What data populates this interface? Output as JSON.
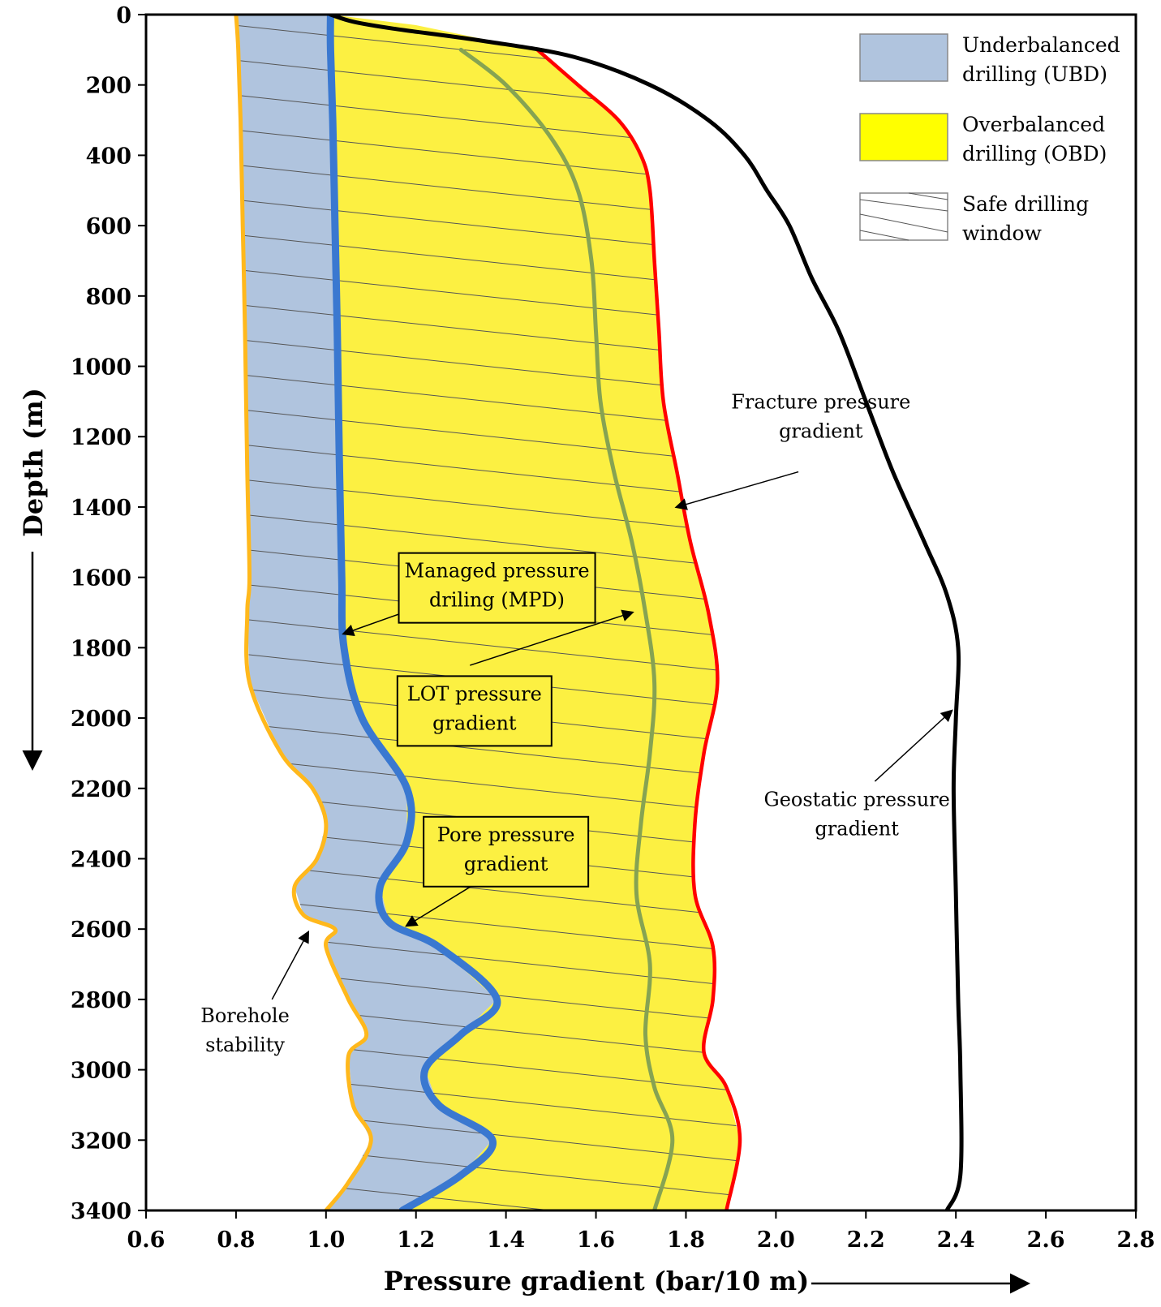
{
  "chart_data": {
    "type": "line",
    "title": "",
    "xlabel": "Pressure gradient (bar/10 m)",
    "ylabel": "Depth (m)",
    "xlim": [
      0.6,
      2.8
    ],
    "ylim": [
      3400,
      0
    ],
    "x_ticks": [
      "0.6",
      "0.8",
      "1.0",
      "1.2",
      "1.4",
      "1.6",
      "1.8",
      "2.0",
      "2.2",
      "2.4",
      "2.6",
      "2.8"
    ],
    "y_ticks": [
      "0",
      "200",
      "400",
      "600",
      "800",
      "1000",
      "1200",
      "1400",
      "1600",
      "1800",
      "2000",
      "2200",
      "2400",
      "2600",
      "2800",
      "3000",
      "3200",
      "3400"
    ],
    "grid": false,
    "legend_position": "top-right",
    "legend": [
      {
        "label": "Underbalanced drilling (UBD)",
        "lines": [
          "Underbalanced",
          "drilling (UBD)"
        ],
        "fill": "#b0c4de"
      },
      {
        "label": "Overbalanced drilling (OBD)",
        "lines": [
          "Overbalanced",
          "drilling (OBD)"
        ],
        "fill": "#ffff00"
      },
      {
        "label": "Safe drilling window",
        "lines": [
          "Safe drilling",
          "window"
        ],
        "fill": "hatch"
      }
    ],
    "colors": {
      "borehole_stability": "#ffb81c",
      "pore_pressure": "#3a78d0",
      "lot_pressure": "#86a352",
      "fracture_pressure": "#ff0000",
      "geostatic_pressure": "#000000",
      "ubd_fill": "#b0c4de",
      "obd_fill": "#fcf042"
    },
    "series": [
      {
        "key": "borehole_stability",
        "points": [
          [
            0.8,
            0
          ],
          [
            0.805,
            100
          ],
          [
            0.81,
            300
          ],
          [
            0.815,
            600
          ],
          [
            0.82,
            900
          ],
          [
            0.825,
            1300
          ],
          [
            0.83,
            1600
          ],
          [
            0.825,
            1700
          ],
          [
            0.83,
            1900
          ],
          [
            0.9,
            2100
          ],
          [
            0.97,
            2200
          ],
          [
            1.0,
            2300
          ],
          [
            0.98,
            2400
          ],
          [
            0.93,
            2480
          ],
          [
            0.95,
            2560
          ],
          [
            1.02,
            2600
          ],
          [
            1.0,
            2650
          ],
          [
            1.05,
            2800
          ],
          [
            1.09,
            2900
          ],
          [
            1.05,
            2960
          ],
          [
            1.06,
            3100
          ],
          [
            1.1,
            3200
          ],
          [
            1.05,
            3320
          ],
          [
            1.0,
            3400
          ]
        ]
      },
      {
        "key": "pore_pressure",
        "points": [
          [
            1.01,
            0
          ],
          [
            1.01,
            100
          ],
          [
            1.015,
            300
          ],
          [
            1.02,
            600
          ],
          [
            1.025,
            900
          ],
          [
            1.03,
            1300
          ],
          [
            1.035,
            1600
          ],
          [
            1.04,
            1800
          ],
          [
            1.08,
            2000
          ],
          [
            1.18,
            2200
          ],
          [
            1.18,
            2350
          ],
          [
            1.12,
            2480
          ],
          [
            1.14,
            2580
          ],
          [
            1.25,
            2650
          ],
          [
            1.38,
            2800
          ],
          [
            1.3,
            2900
          ],
          [
            1.22,
            3000
          ],
          [
            1.25,
            3100
          ],
          [
            1.37,
            3200
          ],
          [
            1.3,
            3300
          ],
          [
            1.17,
            3400
          ]
        ]
      },
      {
        "key": "lot_pressure",
        "points": [
          [
            1.3,
            100
          ],
          [
            1.4,
            200
          ],
          [
            1.5,
            350
          ],
          [
            1.56,
            500
          ],
          [
            1.59,
            700
          ],
          [
            1.6,
            900
          ],
          [
            1.61,
            1100
          ],
          [
            1.64,
            1300
          ],
          [
            1.68,
            1500
          ],
          [
            1.71,
            1700
          ],
          [
            1.73,
            1900
          ],
          [
            1.72,
            2100
          ],
          [
            1.7,
            2300
          ],
          [
            1.69,
            2500
          ],
          [
            1.72,
            2700
          ],
          [
            1.71,
            2900
          ],
          [
            1.73,
            3050
          ],
          [
            1.77,
            3200
          ],
          [
            1.73,
            3400
          ]
        ]
      },
      {
        "key": "fracture_pressure",
        "points": [
          [
            1.47,
            100
          ],
          [
            1.56,
            200
          ],
          [
            1.65,
            300
          ],
          [
            1.7,
            400
          ],
          [
            1.72,
            500
          ],
          [
            1.73,
            700
          ],
          [
            1.74,
            900
          ],
          [
            1.75,
            1100
          ],
          [
            1.78,
            1300
          ],
          [
            1.81,
            1500
          ],
          [
            1.85,
            1700
          ],
          [
            1.87,
            1900
          ],
          [
            1.84,
            2100
          ],
          [
            1.82,
            2300
          ],
          [
            1.82,
            2500
          ],
          [
            1.86,
            2650
          ],
          [
            1.86,
            2800
          ],
          [
            1.84,
            2950
          ],
          [
            1.89,
            3050
          ],
          [
            1.92,
            3200
          ],
          [
            1.89,
            3400
          ]
        ]
      },
      {
        "key": "geostatic_pressure",
        "points": [
          [
            1.01,
            0
          ],
          [
            1.06,
            20
          ],
          [
            1.15,
            40
          ],
          [
            1.35,
            75
          ],
          [
            1.55,
            120
          ],
          [
            1.72,
            200
          ],
          [
            1.85,
            300
          ],
          [
            1.93,
            400
          ],
          [
            1.98,
            500
          ],
          [
            2.03,
            600
          ],
          [
            2.08,
            750
          ],
          [
            2.14,
            900
          ],
          [
            2.2,
            1100
          ],
          [
            2.26,
            1300
          ],
          [
            2.33,
            1500
          ],
          [
            2.38,
            1650
          ],
          [
            2.405,
            1800
          ],
          [
            2.4,
            2000
          ],
          [
            2.395,
            2200
          ],
          [
            2.4,
            2500
          ],
          [
            2.405,
            2800
          ],
          [
            2.41,
            3000
          ],
          [
            2.41,
            3300
          ],
          [
            2.38,
            3400
          ]
        ]
      }
    ],
    "annotations": [
      {
        "key": "fracture",
        "lines": [
          "Fracture pressure",
          "gradient"
        ],
        "boxed": false,
        "text_at": [
          2.1,
          1120
        ],
        "arrow_from": [
          2.05,
          1300
        ],
        "arrow_to": [
          1.78,
          1400
        ]
      },
      {
        "key": "mpd",
        "lines": [
          "Managed pressure",
          "driling (MPD)"
        ],
        "boxed": true,
        "text_at": [
          1.38,
          1600
        ],
        "arrow_from": [
          1.37,
          1610
        ],
        "arrow_to": [
          1.04,
          1760
        ]
      },
      {
        "key": "lot",
        "lines": [
          "LOT pressure",
          "gradient"
        ],
        "boxed": true,
        "text_at": [
          1.33,
          1950
        ],
        "arrow_from": [
          1.32,
          1850
        ],
        "arrow_to": [
          1.68,
          1700
        ]
      },
      {
        "key": "pore",
        "lines": [
          "Pore pressure",
          "gradient"
        ],
        "boxed": true,
        "text_at": [
          1.4,
          2350
        ],
        "arrow_from": [
          1.41,
          2410
        ],
        "arrow_to": [
          1.18,
          2590
        ]
      },
      {
        "key": "geostatic",
        "lines": [
          "Geostatic pressure",
          "gradient"
        ],
        "boxed": false,
        "text_at": [
          2.18,
          2250
        ],
        "arrow_from": [
          2.22,
          2180
        ],
        "arrow_to": [
          2.39,
          1980
        ]
      },
      {
        "key": "borehole",
        "lines": [
          "Borehole",
          "stability"
        ],
        "boxed": false,
        "text_at": [
          0.82,
          2865
        ],
        "arrow_from": [
          0.88,
          2800
        ],
        "arrow_to": [
          0.96,
          2610
        ]
      }
    ]
  }
}
